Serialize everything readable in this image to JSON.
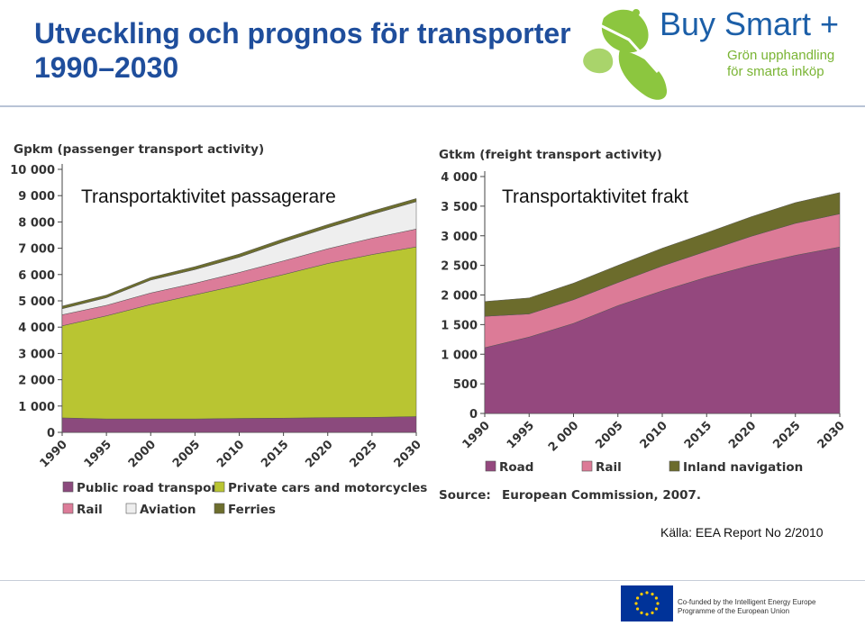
{
  "header": {
    "title_line1": "Utveckling och prognos för transporter",
    "title_line2": "1990–2030"
  },
  "logo": {
    "name": "Buy Smart +",
    "tagline_line1": "Grön upphandling",
    "tagline_line2": "för smarta inköp"
  },
  "colors": {
    "title": "#1f4e9c",
    "public_road": "#8b4a7d",
    "private_cars": "#b9c532",
    "rail": "#dc7c99",
    "aviation": "#eeeeee",
    "ferries": "#6d6e2d",
    "freight_road": "#94487e",
    "freight_rail": "#dc7b97",
    "inland_navigation": "#6c6c2c"
  },
  "chart_data": [
    {
      "type": "area",
      "stacked": true,
      "overlay_title": "Transportaktivitet passagerare",
      "ylabel": "Gpkm (passenger transport activity)",
      "x": [
        1990,
        1995,
        2000,
        2005,
        2010,
        2015,
        2020,
        2025,
        2030
      ],
      "x_tick_labels": [
        "1990",
        "1995",
        "2000",
        "2005",
        "2010",
        "2015",
        "2020",
        "2025",
        "2030"
      ],
      "ylim": [
        0,
        10000
      ],
      "y_ticks": [
        0,
        1000,
        2000,
        3000,
        4000,
        5000,
        6000,
        7000,
        8000,
        9000,
        10000
      ],
      "y_tick_labels": [
        "0",
        "1 000",
        "2 000",
        "3 000",
        "4 000",
        "5 000",
        "6 000",
        "7 000",
        "8 000",
        "9 000",
        "10 000"
      ],
      "series": [
        {
          "name": "Public road transport",
          "color": "#8b4a7d",
          "values": [
            550,
            510,
            510,
            510,
            530,
            540,
            560,
            570,
            600
          ]
        },
        {
          "name": "Private cars and motorcycles",
          "color": "#b9c532",
          "values": [
            3500,
            3920,
            4350,
            4720,
            5070,
            5460,
            5860,
            6190,
            6450
          ]
        },
        {
          "name": "Rail",
          "color": "#dc7c99",
          "values": [
            420,
            400,
            440,
            440,
            480,
            520,
            560,
            620,
            680
          ]
        },
        {
          "name": "Aviation",
          "color": "#eeeeee",
          "values": [
            230,
            290,
            490,
            520,
            580,
            720,
            800,
            910,
            1040
          ]
        },
        {
          "name": "Ferries",
          "color": "#6d6e2d",
          "values": [
            100,
            100,
            100,
            110,
            120,
            120,
            120,
            120,
            120
          ]
        }
      ],
      "legend_labels": [
        "Public road transport",
        "Private cars and motorcycles",
        "Rail",
        "Aviation",
        "Ferries"
      ],
      "legend_position": "bottom"
    },
    {
      "type": "area",
      "stacked": true,
      "overlay_title": "Transportaktivitet frakt",
      "ylabel": "Gtkm (freight transport activity)",
      "x": [
        1990,
        1995,
        2000,
        2005,
        2010,
        2015,
        2020,
        2025,
        2030
      ],
      "x_tick_labels": [
        "1990",
        "1995",
        "2 000",
        "2005",
        "2010",
        "2015",
        "2020",
        "2025",
        "2030"
      ],
      "ylim": [
        0,
        4000
      ],
      "y_ticks": [
        0,
        500,
        1000,
        1500,
        2000,
        2500,
        3000,
        3500,
        4000
      ],
      "y_tick_labels": [
        "0",
        "500",
        "1 000",
        "1 500",
        "2 000",
        "2 500",
        "3 000",
        "3 500",
        "4 000"
      ],
      "series": [
        {
          "name": "Road",
          "color": "#94487e",
          "values": [
            1110,
            1290,
            1520,
            1820,
            2070,
            2300,
            2500,
            2670,
            2810
          ]
        },
        {
          "name": "Rail",
          "color": "#dc7b97",
          "values": [
            530,
            390,
            400,
            390,
            420,
            440,
            490,
            540,
            560
          ]
        },
        {
          "name": "Inland navigation",
          "color": "#6c6c2c",
          "values": [
            250,
            270,
            280,
            290,
            300,
            310,
            330,
            350,
            360
          ]
        }
      ],
      "legend_labels": [
        "Road",
        "Rail",
        "Inland navigation"
      ],
      "legend_position": "bottom",
      "source_label": "Source:",
      "source_text": "European Commission, 2007."
    }
  ],
  "footer": {
    "source_note": "Källa: EEA Report No 2/2010",
    "eu_line1": "Co-funded by the Intelligent Energy Europe",
    "eu_line2": "Programme of the European Union"
  }
}
